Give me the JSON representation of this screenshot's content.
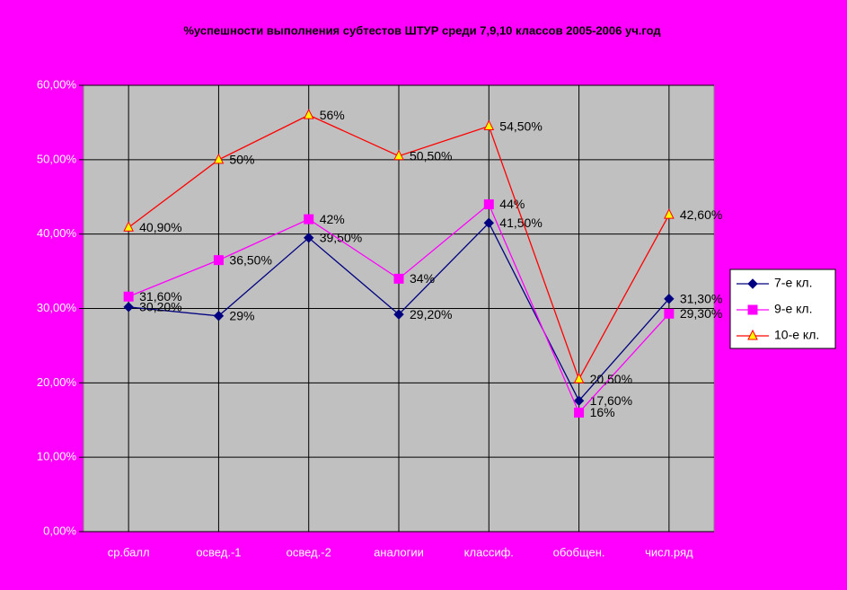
{
  "chart_data": {
    "type": "line",
    "title": "%успешности выполнения субтестов ШТУР среди 7,9,10 классов 2005-2006 уч.год",
    "categories": [
      "ср.балл",
      "освед.-1",
      "освед.-2",
      "аналогии",
      "классиф.",
      "обобщен.",
      "числ.ряд"
    ],
    "series": [
      {
        "name": "7-е кл.",
        "color": "#000080",
        "marker": "diamond",
        "marker_color": "#000080",
        "values": [
          30.2,
          29,
          39.5,
          29.2,
          41.5,
          17.6,
          31.3
        ],
        "value_labels": [
          "30,20%",
          "29%",
          "39,50%",
          "29,20%",
          "41,50%",
          "17,60%",
          "31,30%"
        ]
      },
      {
        "name": "9-е кл.",
        "color": "#ff00ff",
        "marker": "square",
        "marker_color": "#ff00ff",
        "values": [
          31.6,
          36.5,
          42,
          34,
          44,
          16,
          29.3
        ],
        "value_labels": [
          "31,60%",
          "36,50%",
          "42%",
          "34%",
          "44%",
          "16%",
          "29,30%"
        ]
      },
      {
        "name": "10-е кл.",
        "color": "#ff0000",
        "marker": "triangle",
        "marker_color": "#ffff00",
        "values": [
          40.9,
          50,
          56,
          50.5,
          54.5,
          20.5,
          42.6
        ],
        "value_labels": [
          "40,90%",
          "50%",
          "56%",
          "50,50%",
          "54,50%",
          "20,50%",
          "42,60%"
        ]
      }
    ],
    "ylim": [
      0,
      60
    ],
    "yticks": [
      {
        "value": 0,
        "label": "0,00%"
      },
      {
        "value": 10,
        "label": "10,00%"
      },
      {
        "value": 20,
        "label": "20,00%"
      },
      {
        "value": 30,
        "label": "30,00%"
      },
      {
        "value": 40,
        "label": "40,00%"
      },
      {
        "value": 50,
        "label": "50,00%"
      },
      {
        "value": 60,
        "label": "60,00%"
      }
    ],
    "grid": true,
    "legend": "right"
  }
}
